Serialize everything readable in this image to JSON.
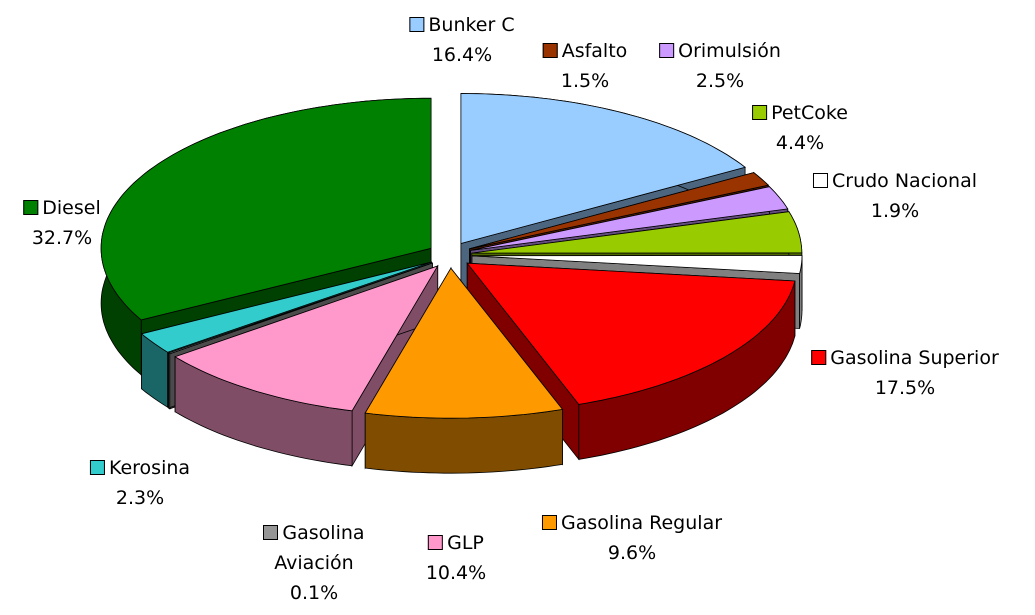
{
  "chart_data": {
    "type": "pie",
    "categories": [
      "Bunker C",
      "Asfalto",
      "Orimulsión",
      "PetCoke",
      "Crudo Nacional",
      "Gasolina Superior",
      "Gasolina Regular",
      "GLP",
      "Gasolina Aviación",
      "Kerosina",
      "Diesel"
    ],
    "values": [
      16.4,
      1.5,
      2.5,
      4.4,
      1.9,
      17.5,
      9.6,
      10.4,
      0.1,
      2.3,
      32.7
    ],
    "value_labels": [
      "16.4%",
      "1.5%",
      "2.5%",
      "4.4%",
      "1.9%",
      "17.5%",
      "9.6%",
      "10.4%",
      "0.1%",
      "2.3%",
      "32.7%"
    ],
    "colors": [
      "#99ccff",
      "#993300",
      "#cc99ff",
      "#99cc00",
      "#ffffff",
      "#ff0000",
      "#ff9900",
      "#ff99cc",
      "#969696",
      "#33cccc",
      "#008000"
    ]
  }
}
